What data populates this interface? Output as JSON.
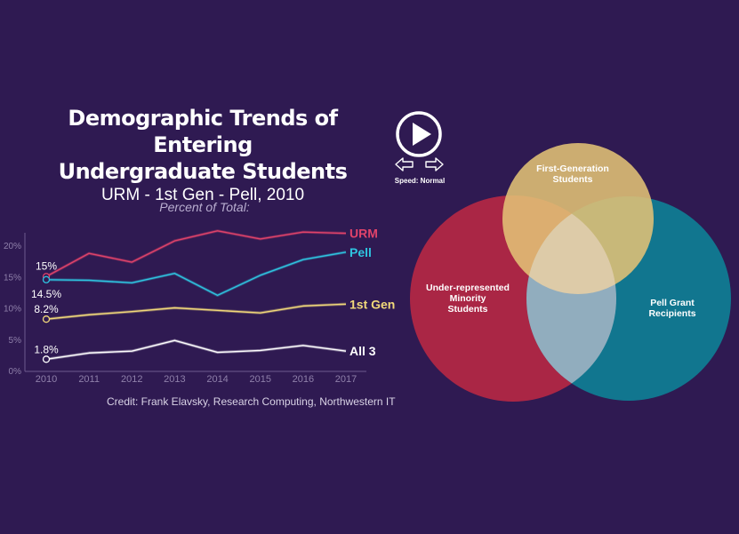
{
  "title": {
    "line1": "Demographic Trends of Entering",
    "line2": "Undergraduate Students",
    "subtitle": "URM - 1st Gen - Pell, 2010"
  },
  "controls": {
    "play_icon": "play-icon",
    "prev_icon": "left-arrow-icon",
    "next_icon": "right-arrow-icon",
    "prev_glyph": "⇦",
    "next_glyph": "⇨",
    "speed_label": "Speed: Normal"
  },
  "credit": "Credit: Frank Elavsky, Research Computing, Northwestern IT",
  "colors": {
    "background": "#2f1a52",
    "urm": "#e0436a",
    "pell": "#2fc4e0",
    "first_gen": "#f2d97a",
    "all3": "#ffffff",
    "venn_urm": "#c62a42",
    "venn_pell": "#0b8b9c",
    "venn_first_gen": "#d9b45a"
  },
  "chart_data": [
    {
      "type": "line",
      "title": "Percent of Total:",
      "xlabel": "",
      "ylabel": "",
      "x": [
        2010,
        2011,
        2012,
        2013,
        2014,
        2015,
        2016,
        2017
      ],
      "ylim": [
        0,
        22
      ],
      "yticks": [
        0,
        5,
        10,
        15,
        20
      ],
      "ytick_labels": [
        "0%",
        "5%",
        "10%",
        "15%",
        "20%"
      ],
      "grid": false,
      "current_year": 2010,
      "series": [
        {
          "name": "URM",
          "key": "urm",
          "values": [
            15.0,
            18.7,
            17.3,
            20.7,
            22.3,
            21.0,
            22.1,
            21.9
          ],
          "current_label": "15%"
        },
        {
          "name": "Pell",
          "key": "pell",
          "values": [
            14.5,
            14.4,
            14.0,
            15.5,
            12.0,
            15.2,
            17.7,
            18.9
          ],
          "current_label": "14.5%"
        },
        {
          "name": "1st Gen",
          "key": "first_gen",
          "values": [
            8.2,
            8.9,
            9.4,
            10.0,
            9.6,
            9.2,
            10.3,
            10.6
          ],
          "current_label": "8.2%"
        },
        {
          "name": "All 3",
          "key": "all3",
          "values": [
            1.8,
            2.8,
            3.1,
            4.8,
            2.9,
            3.2,
            4.0,
            3.1
          ],
          "current_label": "1.8%"
        }
      ]
    },
    {
      "type": "venn",
      "sets": [
        {
          "name": "Under-represented Minority Students",
          "lines": [
            "Under-represented",
            "Minority",
            "Students"
          ],
          "key": "venn_urm"
        },
        {
          "name": "Pell Grant Recipients",
          "lines": [
            "Pell Grant",
            "Recipients"
          ],
          "key": "venn_pell"
        },
        {
          "name": "First-Generation Students",
          "lines": [
            "First-Generation",
            "Students"
          ],
          "key": "venn_first_gen"
        }
      ]
    }
  ]
}
